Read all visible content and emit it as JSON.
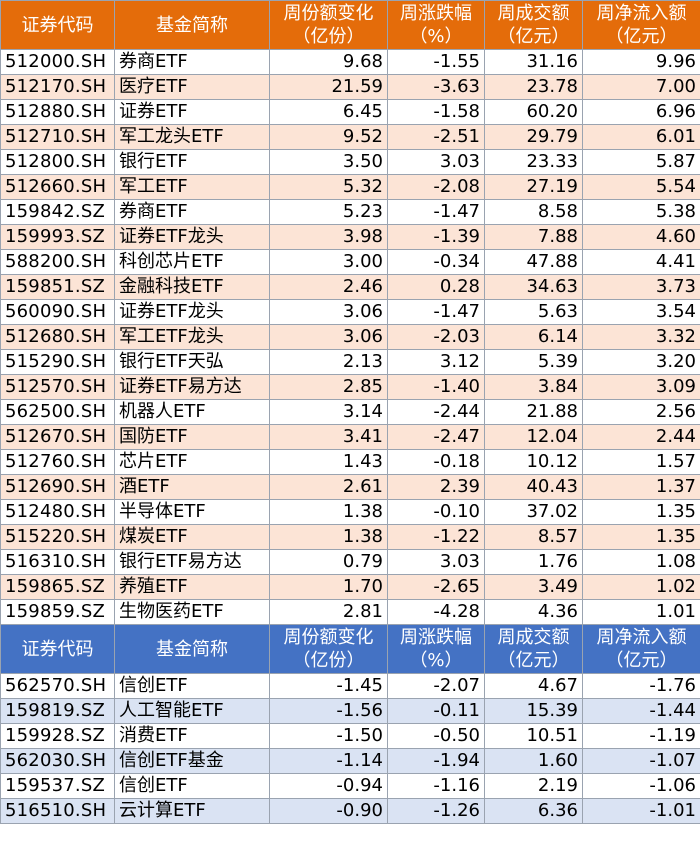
{
  "headers": {
    "code": "证券代码",
    "name": "基金简称",
    "share_change": [
      "周份额变化",
      "（亿份）"
    ],
    "return": [
      "周涨跌幅",
      "（%）"
    ],
    "turnover": [
      "周成交额",
      "（亿元）"
    ],
    "net_inflow": [
      "周净流入额",
      "（亿元）"
    ]
  },
  "colors": {
    "top_header": "#e46c0a",
    "top_alt": "#fce4d6",
    "bottom_header": "#4472c4",
    "bottom_alt": "#dae3f3"
  },
  "top_rows": [
    [
      "512000.SH",
      "券商ETF",
      "9.68",
      "-1.55",
      "31.16",
      "9.96"
    ],
    [
      "512170.SH",
      "医疗ETF",
      "21.59",
      "-3.63",
      "23.78",
      "7.00"
    ],
    [
      "512880.SH",
      "证券ETF",
      "6.45",
      "-1.58",
      "60.20",
      "6.96"
    ],
    [
      "512710.SH",
      "军工龙头ETF",
      "9.52",
      "-2.51",
      "29.79",
      "6.01"
    ],
    [
      "512800.SH",
      "银行ETF",
      "3.50",
      "3.03",
      "23.33",
      "5.87"
    ],
    [
      "512660.SH",
      "军工ETF",
      "5.32",
      "-2.08",
      "27.19",
      "5.54"
    ],
    [
      "159842.SZ",
      "券商ETF",
      "5.23",
      "-1.47",
      "8.58",
      "5.38"
    ],
    [
      "159993.SZ",
      "证券ETF龙头",
      "3.98",
      "-1.39",
      "7.88",
      "4.60"
    ],
    [
      "588200.SH",
      "科创芯片ETF",
      "3.00",
      "-0.34",
      "47.88",
      "4.41"
    ],
    [
      "159851.SZ",
      "金融科技ETF",
      "2.46",
      "0.28",
      "34.63",
      "3.73"
    ],
    [
      "560090.SH",
      "证券ETF龙头",
      "3.06",
      "-1.47",
      "5.63",
      "3.54"
    ],
    [
      "512680.SH",
      "军工ETF龙头",
      "3.06",
      "-2.03",
      "6.14",
      "3.32"
    ],
    [
      "515290.SH",
      "银行ETF天弘",
      "2.13",
      "3.12",
      "5.39",
      "3.20"
    ],
    [
      "512570.SH",
      "证券ETF易方达",
      "2.85",
      "-1.40",
      "3.84",
      "3.09"
    ],
    [
      "562500.SH",
      "机器人ETF",
      "3.14",
      "-2.44",
      "21.88",
      "2.56"
    ],
    [
      "512670.SH",
      "国防ETF",
      "3.41",
      "-2.47",
      "12.04",
      "2.44"
    ],
    [
      "512760.SH",
      "芯片ETF",
      "1.43",
      "-0.18",
      "10.12",
      "1.57"
    ],
    [
      "512690.SH",
      "酒ETF",
      "2.61",
      "2.39",
      "40.43",
      "1.37"
    ],
    [
      "512480.SH",
      "半导体ETF",
      "1.38",
      "-0.10",
      "37.02",
      "1.35"
    ],
    [
      "515220.SH",
      "煤炭ETF",
      "1.38",
      "-1.22",
      "8.57",
      "1.35"
    ],
    [
      "516310.SH",
      "银行ETF易方达",
      "0.79",
      "3.03",
      "1.76",
      "1.08"
    ],
    [
      "159865.SZ",
      "养殖ETF",
      "1.70",
      "-2.65",
      "3.49",
      "1.02"
    ],
    [
      "159859.SZ",
      "生物医药ETF",
      "2.81",
      "-4.28",
      "4.36",
      "1.01"
    ]
  ],
  "bottom_rows": [
    [
      "562570.SH",
      "信创ETF",
      "-1.45",
      "-2.07",
      "4.67",
      "-1.76"
    ],
    [
      "159819.SZ",
      "人工智能ETF",
      "-1.56",
      "-0.11",
      "15.39",
      "-1.44"
    ],
    [
      "159928.SZ",
      "消费ETF",
      "-1.50",
      "-0.50",
      "10.51",
      "-1.19"
    ],
    [
      "562030.SH",
      "信创ETF基金",
      "-1.14",
      "-1.94",
      "1.60",
      "-1.07"
    ],
    [
      "159537.SZ",
      "信创ETF",
      "-0.94",
      "-1.16",
      "2.19",
      "-1.06"
    ],
    [
      "516510.SH",
      "云计算ETF",
      "-0.90",
      "-1.26",
      "6.36",
      "-1.01"
    ]
  ]
}
